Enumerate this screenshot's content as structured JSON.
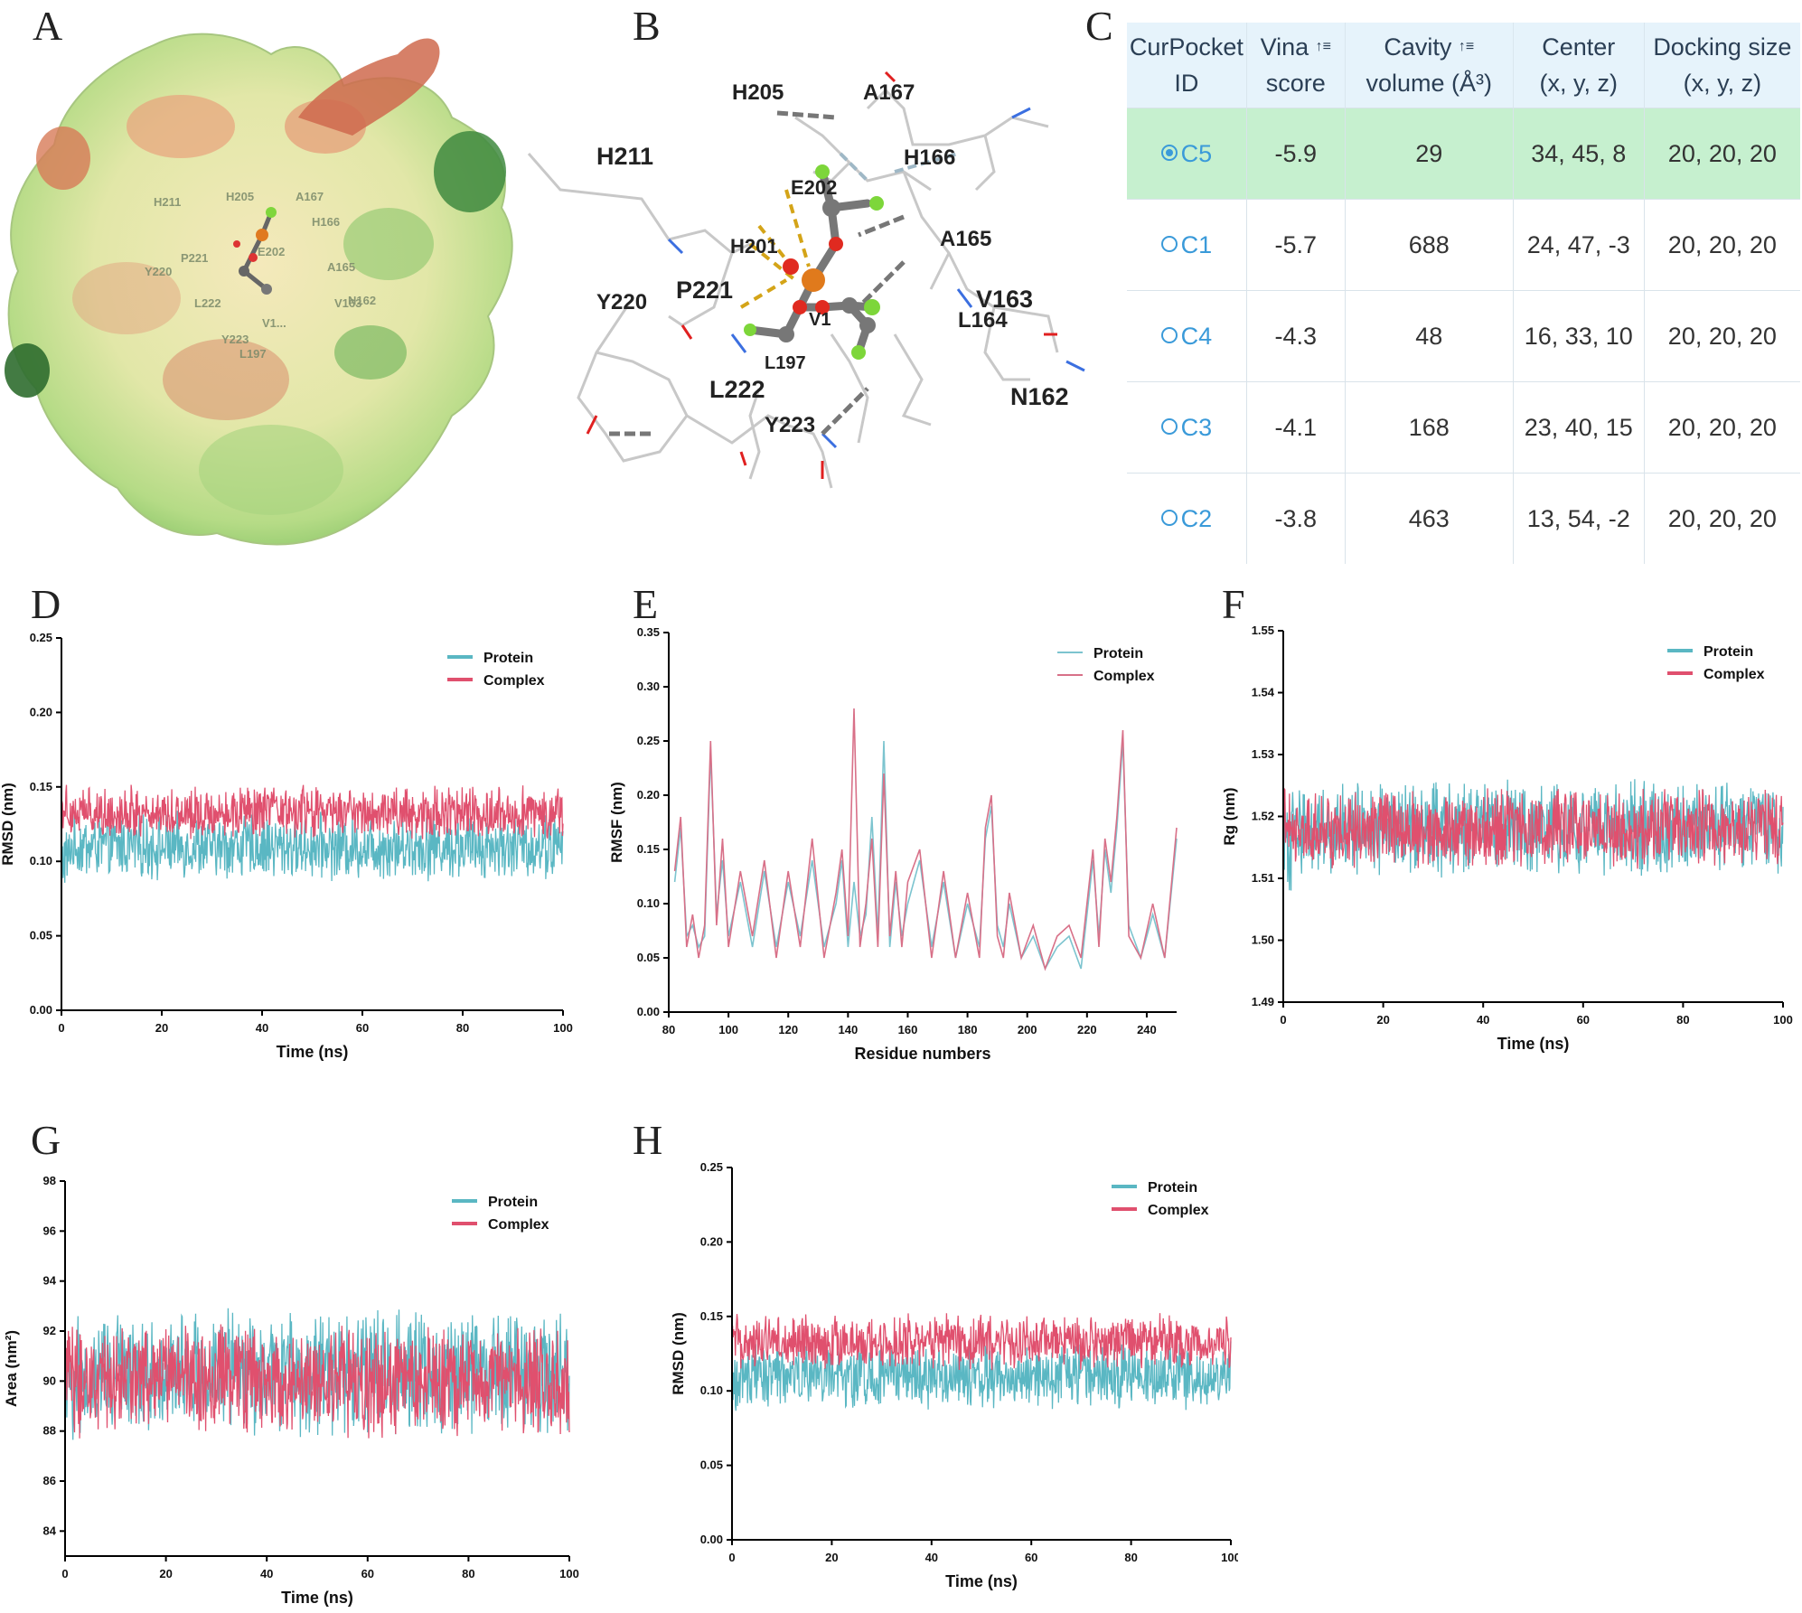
{
  "panel_letters": [
    "A",
    "B",
    "C",
    "D",
    "E",
    "F",
    "G",
    "H"
  ],
  "panel_a": {
    "labels": [
      "H211",
      "H205",
      "A167",
      "H166",
      "P221",
      "E202",
      "Y220",
      "A165",
      "V163",
      "L222",
      "N162",
      "Y223",
      "V1...",
      "L197"
    ],
    "surface_colors": [
      "#f3e7b5",
      "#cfe79c",
      "#9fd17a",
      "#5fa84c",
      "#2f6d2f",
      "#e89c78",
      "#c9593f"
    ]
  },
  "panel_b": {
    "labels": [
      "H205",
      "A167",
      "H211",
      "H166",
      "E202",
      "A165",
      "H201",
      "P221",
      "Y220",
      "V163",
      "L164",
      "L197",
      "L222",
      "N162",
      "Y223",
      "V1"
    ]
  },
  "table_c": {
    "headers": [
      {
        "line1": "CurPocket",
        "line2": "ID",
        "style": "plain"
      },
      {
        "line1": "Vina",
        "line2": "score",
        "style": "red",
        "sort": "↑≡"
      },
      {
        "line1": "Cavity",
        "line2": "volume (Å³)",
        "style": "blue",
        "sort": "↑≡"
      },
      {
        "line1": "Center",
        "line2": "(x, y, z)",
        "style": "plain"
      },
      {
        "line1": "Docking size",
        "line2": "(x, y, z)",
        "style": "plain"
      }
    ],
    "rows": [
      {
        "id": "C5",
        "vina": "-5.9",
        "volume": "29",
        "center": "34, 45, 8",
        "size": "20, 20, 20",
        "selected": true
      },
      {
        "id": "C1",
        "vina": "-5.7",
        "volume": "688",
        "center": "24, 47, -3",
        "size": "20, 20, 20",
        "selected": false
      },
      {
        "id": "C4",
        "vina": "-4.3",
        "volume": "48",
        "center": "16, 33, 10",
        "size": "20, 20, 20",
        "selected": false
      },
      {
        "id": "C3",
        "vina": "-4.1",
        "volume": "168",
        "center": "23, 40, 15",
        "size": "20, 20, 20",
        "selected": false
      },
      {
        "id": "C2",
        "vina": "-3.8",
        "volume": "463",
        "center": "13, 54, -2",
        "size": "20, 20, 20",
        "selected": false
      }
    ]
  },
  "colors": {
    "protein": "#5ab7c3",
    "complex": "#e0506e",
    "protein_e": "#7cc4cf",
    "complex_e": "#d87088"
  },
  "chart_data": [
    {
      "panel": "D",
      "type": "line",
      "xlabel": "Time (ns)",
      "ylabel": "RMSD (nm)",
      "xlim": [
        0,
        100
      ],
      "ylim": [
        0,
        0.25
      ],
      "xticks": [
        "0",
        "20",
        "40",
        "60",
        "80",
        "100"
      ],
      "yticks": [
        "0.00",
        "0.05",
        "0.10",
        "0.15",
        "0.20",
        "0.25"
      ],
      "legend": [
        "Protein",
        "Complex"
      ],
      "legend_position": "top-right",
      "series": [
        {
          "name": "Protein",
          "mean": 0.11,
          "spread": 0.016
        },
        {
          "name": "Complex",
          "mean": 0.133,
          "spread": 0.013
        }
      ]
    },
    {
      "panel": "E",
      "type": "line",
      "xlabel": "Residue numbers",
      "ylabel": "RMSF (nm)",
      "xlim": [
        80,
        250
      ],
      "ylim": [
        0,
        0.35
      ],
      "xticks": [
        "80",
        "100",
        "120",
        "140",
        "160",
        "180",
        "200",
        "220",
        "240"
      ],
      "yticks": [
        "0.00",
        "0.05",
        "0.10",
        "0.15",
        "0.20",
        "0.25",
        "0.30",
        "0.35"
      ],
      "legend": [
        "Protein",
        "Complex"
      ],
      "legend_position": "top-right",
      "series": [
        {
          "name": "Protein",
          "x": [
            82,
            84,
            86,
            88,
            90,
            92,
            94,
            96,
            98,
            100,
            104,
            108,
            112,
            116,
            120,
            124,
            128,
            132,
            136,
            138,
            140,
            142,
            144,
            146,
            148,
            150,
            152,
            154,
            156,
            158,
            160,
            164,
            168,
            172,
            176,
            180,
            184,
            186,
            188,
            190,
            192,
            194,
            198,
            202,
            206,
            210,
            214,
            218,
            222,
            224,
            226,
            228,
            230,
            232,
            234,
            238,
            242,
            246,
            250
          ],
          "values": [
            0.12,
            0.17,
            0.07,
            0.08,
            0.06,
            0.07,
            0.24,
            0.09,
            0.14,
            0.07,
            0.12,
            0.06,
            0.13,
            0.06,
            0.12,
            0.07,
            0.14,
            0.06,
            0.1,
            0.14,
            0.06,
            0.12,
            0.07,
            0.09,
            0.18,
            0.07,
            0.25,
            0.06,
            0.12,
            0.07,
            0.1,
            0.14,
            0.06,
            0.12,
            0.05,
            0.1,
            0.06,
            0.16,
            0.19,
            0.08,
            0.06,
            0.1,
            0.05,
            0.07,
            0.04,
            0.06,
            0.07,
            0.04,
            0.14,
            0.07,
            0.15,
            0.11,
            0.17,
            0.25,
            0.08,
            0.05,
            0.09,
            0.05,
            0.16
          ]
        },
        {
          "name": "Complex",
          "x": [
            82,
            84,
            86,
            88,
            90,
            92,
            94,
            96,
            98,
            100,
            104,
            108,
            112,
            116,
            120,
            124,
            128,
            132,
            136,
            138,
            140,
            142,
            144,
            146,
            148,
            150,
            152,
            154,
            156,
            158,
            160,
            164,
            168,
            172,
            176,
            180,
            184,
            186,
            188,
            190,
            192,
            194,
            198,
            202,
            206,
            210,
            214,
            218,
            222,
            224,
            226,
            228,
            230,
            232,
            234,
            238,
            242,
            246,
            250
          ],
          "values": [
            0.13,
            0.18,
            0.06,
            0.09,
            0.05,
            0.08,
            0.25,
            0.08,
            0.16,
            0.06,
            0.13,
            0.07,
            0.14,
            0.05,
            0.13,
            0.06,
            0.16,
            0.05,
            0.11,
            0.15,
            0.07,
            0.28,
            0.06,
            0.1,
            0.16,
            0.06,
            0.22,
            0.07,
            0.13,
            0.06,
            0.12,
            0.15,
            0.05,
            0.13,
            0.05,
            0.11,
            0.05,
            0.17,
            0.2,
            0.07,
            0.05,
            0.11,
            0.05,
            0.08,
            0.04,
            0.07,
            0.08,
            0.05,
            0.15,
            0.06,
            0.16,
            0.12,
            0.18,
            0.26,
            0.07,
            0.05,
            0.1,
            0.05,
            0.17
          ]
        }
      ]
    },
    {
      "panel": "F",
      "type": "line",
      "xlabel": "Time (ns)",
      "ylabel": "Rg (nm)",
      "xlim": [
        0,
        100
      ],
      "ylim": [
        1.49,
        1.55
      ],
      "xticks": [
        "0",
        "20",
        "40",
        "60",
        "80",
        "100"
      ],
      "yticks": [
        "1.49",
        "1.50",
        "1.51",
        "1.52",
        "1.53",
        "1.54",
        "1.55"
      ],
      "legend": [
        "Protein",
        "Complex"
      ],
      "legend_position": "top-right",
      "series": [
        {
          "name": "Protein",
          "mean": 1.518,
          "spread": 0.0055
        },
        {
          "name": "Complex",
          "mean": 1.518,
          "spread": 0.0045
        }
      ]
    },
    {
      "panel": "G",
      "type": "line",
      "xlabel": "Time (ns)",
      "ylabel": "Area (nm²)",
      "xlim": [
        0,
        100
      ],
      "ylim": [
        83,
        98
      ],
      "xticks": [
        "0",
        "20",
        "40",
        "60",
        "80",
        "100"
      ],
      "yticks": [
        "84",
        "86",
        "88",
        "90",
        "92",
        "94",
        "96",
        "98"
      ],
      "legend": [
        "Protein",
        "Complex"
      ],
      "legend_position": "top-right",
      "series": [
        {
          "name": "Protein",
          "mean": 90.3,
          "spread": 1.8
        },
        {
          "name": "Complex",
          "mean": 90.0,
          "spread": 1.6
        }
      ]
    },
    {
      "panel": "H",
      "type": "line",
      "xlabel": "Time (ns)",
      "ylabel": "RMSD (nm)",
      "xlim": [
        0,
        100
      ],
      "ylim": [
        0,
        0.25
      ],
      "xticks": [
        "0",
        "20",
        "40",
        "60",
        "80",
        "100"
      ],
      "yticks": [
        "0.00",
        "0.05",
        "0.10",
        "0.15",
        "0.20",
        "0.25"
      ],
      "legend": [
        "Protein",
        "Complex"
      ],
      "legend_position": "top-right",
      "series": [
        {
          "name": "Protein",
          "mean": 0.11,
          "spread": 0.016
        },
        {
          "name": "Complex",
          "mean": 0.133,
          "spread": 0.013
        }
      ]
    }
  ]
}
